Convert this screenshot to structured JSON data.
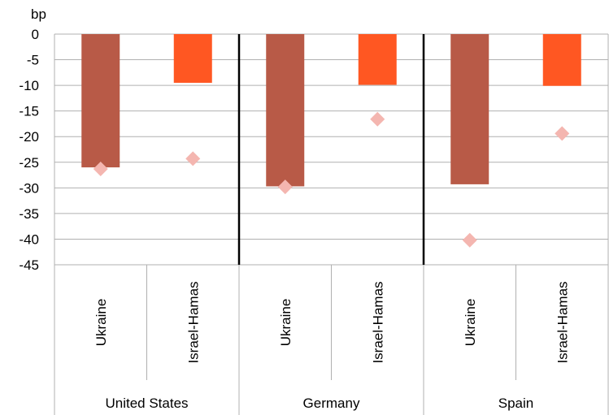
{
  "chart_data": {
    "type": "bar",
    "ylabel": "bp",
    "ylim": [
      -45,
      0
    ],
    "yticks": [
      "0",
      "-5",
      "-10",
      "-15",
      "-20",
      "-25",
      "-30",
      "-35",
      "-40",
      "-45"
    ],
    "ytick_values": [
      0,
      -5,
      -10,
      -15,
      -20,
      -25,
      -30,
      -35,
      -40,
      -45
    ],
    "grid": true,
    "groups": [
      "United States",
      "Germany",
      "Spain"
    ],
    "categories": [
      "Ukraine",
      "Israel-Hamas",
      "Ukraine",
      "Israel-Hamas",
      "Ukraine",
      "Israel-Hamas"
    ],
    "category_group": [
      0,
      0,
      1,
      1,
      2,
      2
    ],
    "bars": [
      -26,
      -9.5,
      -29.7,
      -9.9,
      -29.3,
      -10.1
    ],
    "markers": [
      -26.3,
      -24.3,
      -29.8,
      -16.6,
      -40.2,
      -19.4
    ],
    "colors": {
      "ukraine": "#b85a47",
      "israel_hamas": "#ff5722",
      "marker": "#f4b6b0",
      "grid": "#b0b0b0",
      "separator": "#000000"
    },
    "bar_color_index": [
      0,
      1,
      0,
      1,
      0,
      1
    ]
  }
}
